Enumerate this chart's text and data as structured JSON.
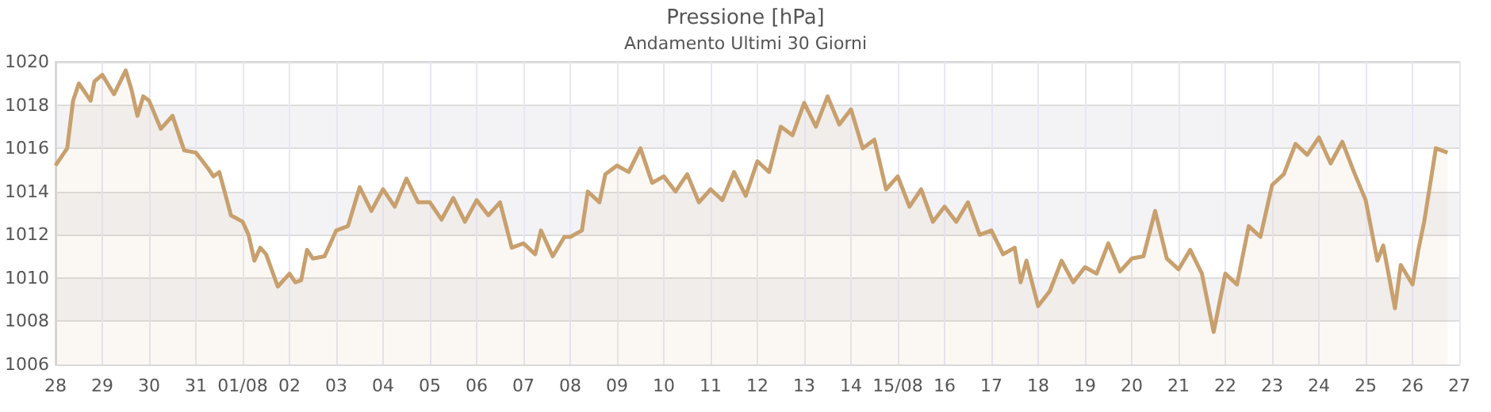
{
  "chart_data": {
    "type": "area",
    "title": "Pressione [hPa]",
    "subtitle": "Andamento Ultimi 30 Giorni",
    "x": [
      "--07-28T00:00",
      "--07-28T06:00",
      "--07-28T09:00",
      "--07-28T12:00",
      "--07-28T18:00",
      "--07-28T20:00",
      "--07-29T00:00",
      "--07-29T06:00",
      "--07-29T12:00",
      "--07-29T15:00",
      "--07-29T18:00",
      "--07-29T21:00",
      "--07-30T00:00",
      "--07-30T06:00",
      "--07-30T12:00",
      "--07-30T18:00",
      "--07-31T00:00",
      "--07-31T06:00",
      "--07-31T09:00",
      "--07-31T12:00",
      "--07-31T18:00",
      "--08-01T00:00",
      "--08-01T03:00",
      "--08-01T06:00",
      "--08-01T09:00",
      "--08-01T12:00",
      "--08-01T18:00",
      "--08-02T00:00",
      "--08-02T03:00",
      "--08-02T06:00",
      "--08-02T09:00",
      "--08-02T12:00",
      "--08-02T18:00",
      "--08-03T00:00",
      "--08-03T06:00",
      "--08-03T12:00",
      "--08-03T18:00",
      "--08-04T00:00",
      "--08-04T06:00",
      "--08-04T12:00",
      "--08-04T18:00",
      "--08-05T00:00",
      "--08-05T06:00",
      "--08-05T12:00",
      "--08-05T18:00",
      "--08-06T00:00",
      "--08-06T06:00",
      "--08-06T12:00",
      "--08-06T18:00",
      "--08-07T00:00",
      "--08-07T06:00",
      "--08-07T09:00",
      "--08-07T15:00",
      "--08-07T21:00",
      "--08-08T00:00",
      "--08-08T06:00",
      "--08-08T09:00",
      "--08-08T15:00",
      "--08-08T18:00",
      "--08-09T00:00",
      "--08-09T06:00",
      "--08-09T12:00",
      "--08-09T18:00",
      "--08-10T00:00",
      "--08-10T06:00",
      "--08-10T12:00",
      "--08-10T18:00",
      "--08-11T00:00",
      "--08-11T06:00",
      "--08-11T12:00",
      "--08-11T18:00",
      "--08-12T00:00",
      "--08-12T06:00",
      "--08-12T12:00",
      "--08-12T18:00",
      "--08-13T00:00",
      "--08-13T06:00",
      "--08-13T12:00",
      "--08-13T18:00",
      "--08-14T00:00",
      "--08-14T06:00",
      "--08-14T12:00",
      "--08-14T18:00",
      "--08-15T00:00",
      "--08-15T06:00",
      "--08-15T12:00",
      "--08-15T18:00",
      "--08-16T00:00",
      "--08-16T06:00",
      "--08-16T12:00",
      "--08-16T18:00",
      "--08-17T00:00",
      "--08-17T06:00",
      "--08-17T12:00",
      "--08-17T15:00",
      "--08-17T18:00",
      "--08-18T00:00",
      "--08-18T06:00",
      "--08-18T12:00",
      "--08-18T18:00",
      "--08-19T00:00",
      "--08-19T06:00",
      "--08-19T12:00",
      "--08-19T18:00",
      "--08-20T00:00",
      "--08-20T06:00",
      "--08-20T12:00",
      "--08-20T18:00",
      "--08-21T00:00",
      "--08-21T06:00",
      "--08-21T12:00",
      "--08-21T18:00",
      "--08-22T00:00",
      "--08-22T06:00",
      "--08-22T12:00",
      "--08-22T18:00",
      "--08-23T00:00",
      "--08-23T06:00",
      "--08-23T12:00",
      "--08-23T18:00",
      "--08-24T00:00",
      "--08-24T06:00",
      "--08-24T12:00",
      "--08-24T18:00",
      "--08-25T00:00",
      "--08-25T06:00",
      "--08-25T09:00",
      "--08-25T15:00",
      "--08-25T18:00",
      "--08-26T00:00",
      "--08-26T03:00",
      "--08-26T06:00",
      "--08-26T12:00",
      "--08-26T18:00"
    ],
    "series": [
      {
        "color": "#c8a06e",
        "values": [
          1015.2,
          1016.0,
          1018.2,
          1019.0,
          1018.2,
          1019.1,
          1019.4,
          1018.5,
          1019.6,
          1018.7,
          1017.5,
          1018.4,
          1018.2,
          1016.9,
          1017.5,
          1015.9,
          1015.8,
          1015.1,
          1014.7,
          1014.9,
          1012.9,
          1012.6,
          1012.0,
          1010.8,
          1011.4,
          1011.1,
          1009.6,
          1010.2,
          1009.8,
          1009.9,
          1011.3,
          1010.9,
          1011.0,
          1012.2,
          1012.4,
          1014.2,
          1013.1,
          1014.1,
          1013.3,
          1014.6,
          1013.5,
          1013.5,
          1012.7,
          1013.7,
          1012.6,
          1013.6,
          1012.9,
          1013.5,
          1011.4,
          1011.6,
          1011.1,
          1012.2,
          1011.0,
          1011.9,
          1011.9,
          1012.2,
          1014.0,
          1013.5,
          1014.8,
          1015.2,
          1014.9,
          1016.0,
          1014.4,
          1014.7,
          1014.0,
          1014.8,
          1013.5,
          1014.1,
          1013.6,
          1014.9,
          1013.8,
          1015.4,
          1014.9,
          1017.0,
          1016.6,
          1018.1,
          1017.0,
          1018.4,
          1017.1,
          1017.8,
          1016.0,
          1016.4,
          1014.1,
          1014.7,
          1013.3,
          1014.1,
          1012.6,
          1013.3,
          1012.6,
          1013.5,
          1012.0,
          1012.2,
          1011.1,
          1011.4,
          1009.8,
          1010.8,
          1008.7,
          1009.4,
          1010.8,
          1009.8,
          1010.5,
          1010.2,
          1011.6,
          1010.3,
          1010.9,
          1011.0,
          1013.1,
          1010.9,
          1010.4,
          1011.3,
          1010.2,
          1007.5,
          1010.2,
          1009.7,
          1012.4,
          1011.9,
          1014.3,
          1014.8,
          1016.2,
          1015.7,
          1016.5,
          1015.3,
          1016.3,
          1014.9,
          1013.6,
          1010.8,
          1011.5,
          1008.6,
          1010.6,
          1009.7,
          1011.3,
          1012.6,
          1016.0,
          1015.8
        ]
      }
    ],
    "xlim": [
      "--07-28",
      "--08-27"
    ],
    "xticks": [
      {
        "value": "--07-28",
        "label": "28"
      },
      {
        "value": "--07-29",
        "label": "29"
      },
      {
        "value": "--07-30",
        "label": "30"
      },
      {
        "value": "--07-31",
        "label": "31"
      },
      {
        "value": "--08-01",
        "label": "01/08"
      },
      {
        "value": "--08-02",
        "label": "02"
      },
      {
        "value": "--08-03",
        "label": "03"
      },
      {
        "value": "--08-04",
        "label": "04"
      },
      {
        "value": "--08-05",
        "label": "05"
      },
      {
        "value": "--08-06",
        "label": "06"
      },
      {
        "value": "--08-07",
        "label": "07"
      },
      {
        "value": "--08-08",
        "label": "08"
      },
      {
        "value": "--08-09",
        "label": "09"
      },
      {
        "value": "--08-10",
        "label": "10"
      },
      {
        "value": "--08-11",
        "label": "11"
      },
      {
        "value": "--08-12",
        "label": "12"
      },
      {
        "value": "--08-13",
        "label": "13"
      },
      {
        "value": "--08-14",
        "label": "14"
      },
      {
        "value": "--08-15",
        "label": "15/08"
      },
      {
        "value": "--08-16",
        "label": "16"
      },
      {
        "value": "--08-17",
        "label": "17"
      },
      {
        "value": "--08-18",
        "label": "18"
      },
      {
        "value": "--08-19",
        "label": "19"
      },
      {
        "value": "--08-20",
        "label": "20"
      },
      {
        "value": "--08-21",
        "label": "21"
      },
      {
        "value": "--08-22",
        "label": "22"
      },
      {
        "value": "--08-23",
        "label": "23"
      },
      {
        "value": "--08-24",
        "label": "24"
      },
      {
        "value": "--08-25",
        "label": "25"
      },
      {
        "value": "--08-26",
        "label": "26"
      },
      {
        "value": "--08-27",
        "label": "27"
      }
    ],
    "ylim": [
      1006,
      1020
    ],
    "yticks": [
      1006,
      1008,
      1010,
      1012,
      1014,
      1016,
      1018,
      1020
    ],
    "grid": true
  }
}
